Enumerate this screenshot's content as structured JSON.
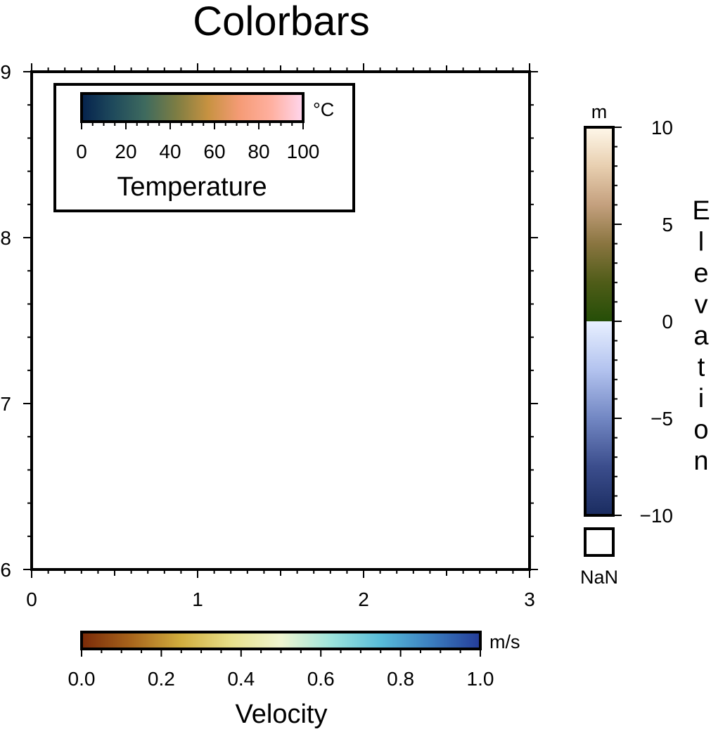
{
  "chart_data": {
    "type": "colorbar",
    "title": "Colorbars",
    "frame": {
      "xlim": [
        0,
        3
      ],
      "ylim": [
        6,
        9
      ],
      "x_ticks": [
        "0",
        "1",
        "2",
        "3"
      ],
      "y_ticks": [
        "6",
        "7",
        "8",
        "9"
      ],
      "grid": false
    },
    "colorbars": [
      {
        "label": "Temperature",
        "unit": "°C",
        "orientation": "horizontal",
        "placement": "inside top-left",
        "range": [
          0,
          100
        ],
        "ticks": [
          "0",
          "20",
          "40",
          "60",
          "80",
          "100"
        ],
        "colors": [
          "#05224d",
          "#1f4a5c",
          "#3e6a5e",
          "#7d7d43",
          "#c79241",
          "#f59b76",
          "#ffb0a0",
          "#ffd6ee"
        ]
      },
      {
        "label": "Velocity",
        "unit": "m/s",
        "orientation": "horizontal",
        "placement": "bottom",
        "range": [
          0.0,
          1.0
        ],
        "ticks": [
          "0.0",
          "0.2",
          "0.4",
          "0.6",
          "0.8",
          "1.0"
        ],
        "colors": [
          "#7a2a08",
          "#a8651c",
          "#d1ae3e",
          "#e8e08a",
          "#eff4d0",
          "#9ee4dc",
          "#58bcd9",
          "#3b7fc0",
          "#243c98"
        ]
      },
      {
        "label": "Elevation",
        "unit": "m",
        "orientation": "vertical",
        "placement": "right",
        "range": [
          -10,
          10
        ],
        "ticks": [
          "10",
          "5",
          "0",
          "−5",
          "−10"
        ],
        "nan_label": "NaN",
        "colors_below_zero": [
          "#1a2c60",
          "#3b4d8c",
          "#7287c3",
          "#b3c3ef",
          "#e8f0ff"
        ],
        "colors_above_zero": [
          "#254e07",
          "#4f5c18",
          "#8a7540",
          "#c4a07e",
          "#e8cfb0",
          "#fff8ea"
        ]
      }
    ]
  }
}
